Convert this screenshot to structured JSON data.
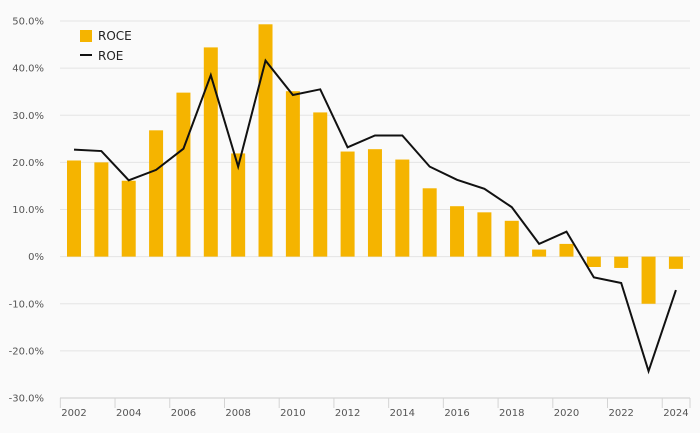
{
  "chart_data": {
    "type": "bar",
    "title": "",
    "xlabel": "",
    "ylabel": "",
    "x": [
      2002,
      2003,
      2004,
      2005,
      2006,
      2007,
      2008,
      2009,
      2010,
      2011,
      2012,
      2013,
      2014,
      2015,
      2016,
      2017,
      2018,
      2019,
      2020,
      2021,
      2022,
      2023,
      2024
    ],
    "x_tick_labels": [
      "2002",
      "2004",
      "2006",
      "2008",
      "2010",
      "2012",
      "2014",
      "2016",
      "2018",
      "2020",
      "2022",
      "2024"
    ],
    "y_tick_labels": [
      "50.0%",
      "40.0%",
      "30.0%",
      "20.0%",
      "10.0%",
      "0%",
      "-10.0%",
      "-20.0%",
      "-30.0%"
    ],
    "y_ticks": [
      50,
      40,
      30,
      20,
      10,
      0,
      -10,
      -20,
      -30
    ],
    "ylim": [
      -30,
      50
    ],
    "grid": true,
    "legend_position": "top-left",
    "series": [
      {
        "name": "ROCE",
        "kind": "bar",
        "color": "#f5b400",
        "values": [
          20.4,
          20.0,
          16.1,
          26.8,
          34.8,
          44.4,
          21.9,
          49.3,
          35.1,
          30.6,
          22.3,
          22.8,
          20.6,
          14.5,
          10.7,
          9.4,
          7.6,
          1.5,
          2.7,
          -2.2,
          -2.4,
          -10.0,
          -2.6
        ]
      },
      {
        "name": "ROE",
        "kind": "line",
        "color": "#111111",
        "values": [
          22.7,
          22.4,
          16.2,
          18.4,
          22.9,
          38.5,
          19.1,
          41.6,
          34.3,
          35.5,
          23.2,
          25.7,
          25.7,
          19.1,
          16.3,
          14.4,
          10.5,
          2.7,
          5.3,
          -4.4,
          -5.6,
          -24.3,
          -7.1
        ]
      }
    ]
  }
}
